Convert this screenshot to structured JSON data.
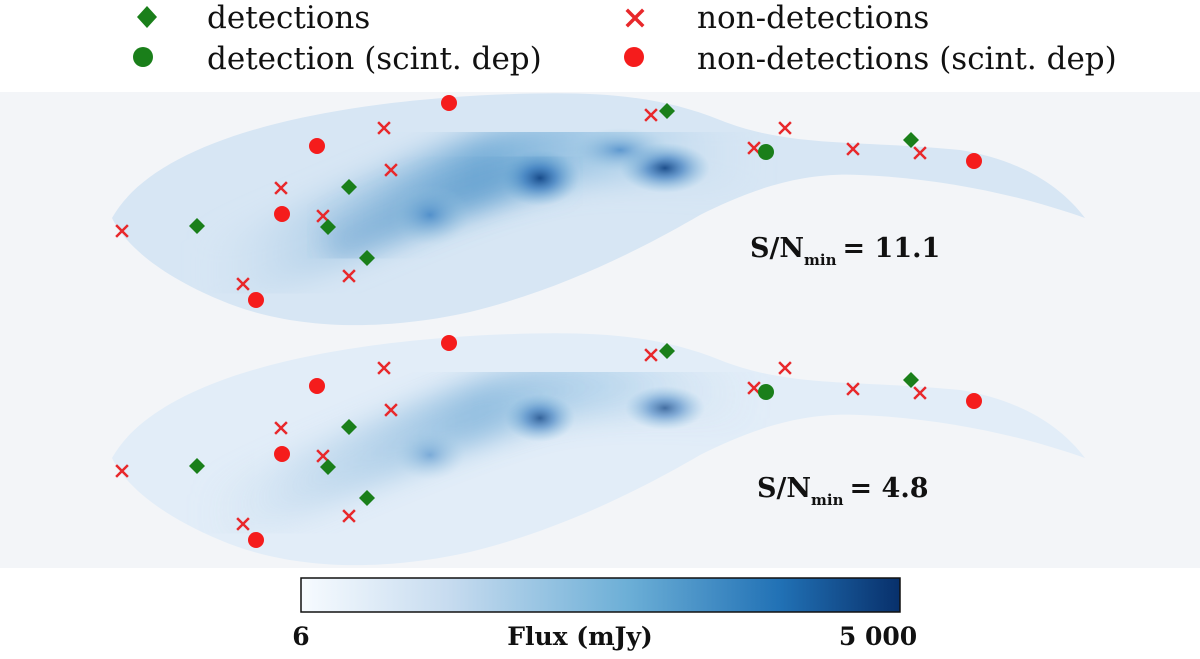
{
  "chart_data": {
    "type": "scatter",
    "description_colormap": "Blues",
    "legend": {
      "placement": "top",
      "entries": [
        {
          "key": "det",
          "label": "detections",
          "marker": "diamond",
          "color": "#1a7f1a"
        },
        {
          "key": "nondet",
          "label": "non-detections",
          "marker": "x",
          "color": "#e8282b"
        },
        {
          "key": "det_scint",
          "label": "detection (scint. dep)",
          "marker": "circle",
          "color": "#1a7f1a"
        },
        {
          "key": "nondet_scint",
          "label": "non-detections (scint. dep)",
          "marker": "circle",
          "color": "#f51c1c"
        }
      ]
    },
    "panels": [
      {
        "snr_prefix": "S/N",
        "snr_sub": "min",
        "snr_value": "= 11.1",
        "intensity": 1.0
      },
      {
        "snr_prefix": "S/N",
        "snr_sub": "min",
        "snr_value": "= 4.8",
        "intensity": 0.75
      }
    ],
    "points": {
      "det": [
        [
          197,
          226
        ],
        [
          328,
          227
        ],
        [
          349,
          187
        ],
        [
          367,
          258
        ],
        [
          667,
          111
        ],
        [
          911,
          140
        ]
      ],
      "det_scint": [
        [
          766,
          152
        ]
      ],
      "nondet": [
        [
          122,
          231
        ],
        [
          243,
          284
        ],
        [
          281,
          188
        ],
        [
          323,
          216
        ],
        [
          349,
          276
        ],
        [
          384,
          128
        ],
        [
          391,
          170
        ],
        [
          651,
          115
        ],
        [
          754,
          148
        ],
        [
          785,
          128
        ],
        [
          853,
          149
        ],
        [
          920,
          153
        ]
      ],
      "nondet_scint": [
        [
          256,
          300
        ],
        [
          282,
          214
        ],
        [
          317,
          146
        ],
        [
          449,
          103
        ],
        [
          974,
          161
        ]
      ]
    },
    "colorbar": {
      "label": "Flux (mJy)",
      "min_label": "6",
      "max_label": "5 000",
      "colors": [
        "#f7fbff",
        "#c6dbef",
        "#6baed6",
        "#2171b5",
        "#08306b"
      ]
    },
    "colors": {
      "green": "#1a7f1a",
      "red": "#e8282b"
    }
  }
}
